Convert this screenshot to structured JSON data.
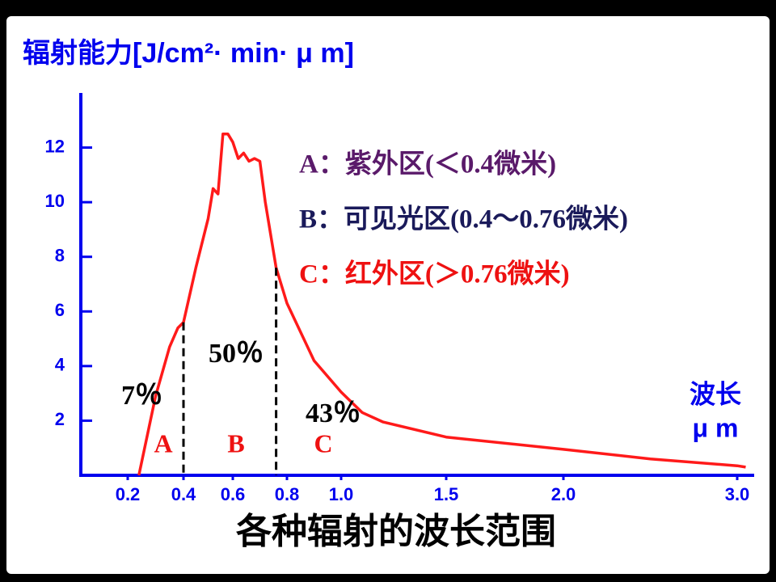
{
  "chart_data": {
    "type": "line",
    "y_label": "辐射能力[J/cm²· min· μ m]",
    "x_label": "各种辐射的波长范围",
    "x_unit": [
      "波长",
      "μ m"
    ],
    "series": [
      {
        "color": "#ff1a1a",
        "x": [
          0.24,
          0.3,
          0.35,
          0.38,
          0.4,
          0.45,
          0.5,
          0.52,
          0.54,
          0.56,
          0.58,
          0.6,
          0.62,
          0.64,
          0.66,
          0.68,
          0.7,
          0.72,
          0.76,
          0.8,
          0.9,
          1.0,
          1.1,
          1.2,
          1.5,
          2.0,
          2.5,
          3.0,
          3.05
        ],
        "values": [
          0,
          2.9,
          4.7,
          5.4,
          5.6,
          7.6,
          9.4,
          10.5,
          10.3,
          12.5,
          12.5,
          12.2,
          11.6,
          11.8,
          11.5,
          11.6,
          11.5,
          10,
          7.6,
          6.3,
          4.2,
          3.05,
          2.3,
          1.95,
          1.4,
          0.95,
          0.6,
          0.35,
          0.3
        ]
      }
    ],
    "boundaries": [
      0.4,
      0.76
    ],
    "region_labels": [
      "A",
      "B",
      "C"
    ],
    "percent_labels": [
      "7％",
      "50％",
      "43％"
    ],
    "legend_items": [
      {
        "text": "A：紫外区(＜0.4微米)",
        "color": "#5a1a6a"
      },
      {
        "text": "B：可见光区(0.4～0.76微米)",
        "color": "#1a1a5a"
      },
      {
        "text": "C：红外区(＞0.76微米)",
        "color": "#ee1111"
      }
    ],
    "xlim": [
      0.03,
      3.1
    ],
    "xticks": [
      0.2,
      0.4,
      0.6,
      0.8,
      {
        "value": 1,
        "label": "1.0"
      },
      1.5,
      {
        "value": 2,
        "label": "2.0"
      },
      {
        "value": 3,
        "label": "3.0"
      }
    ],
    "ylim": [
      0,
      14
    ],
    "yticks": [
      2,
      4,
      6,
      8,
      10,
      12
    ],
    "grid": false,
    "axis_color": "#0000ee"
  }
}
